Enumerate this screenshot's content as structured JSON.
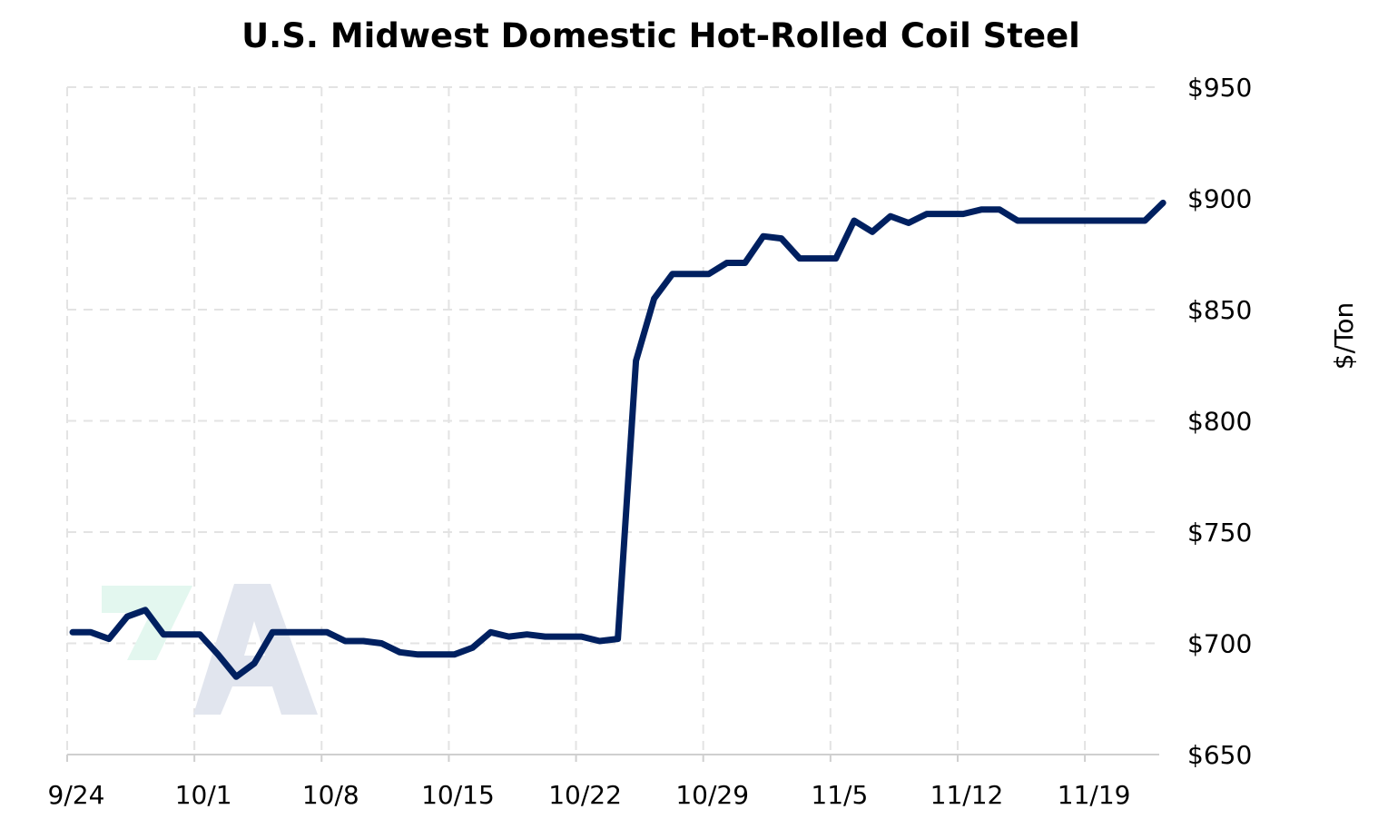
{
  "chart_data": {
    "type": "line",
    "title": "U.S. Midwest Domestic Hot-Rolled Coil Steel",
    "xlabel": "",
    "ylabel": "$/Ton",
    "x_tick_labels": [
      "9/24",
      "10/1",
      "10/8",
      "10/15",
      "10/22",
      "10/29",
      "11/5",
      "11/12",
      "11/19"
    ],
    "y_tick_values": [
      650,
      700,
      750,
      800,
      850,
      900,
      950
    ],
    "y_tick_labels": [
      "$650",
      "$700",
      "$750",
      "$800",
      "$850",
      "$900",
      "$950"
    ],
    "ylim": [
      650,
      950
    ],
    "xlim": [
      "9/24",
      "11/23"
    ],
    "grid": true,
    "y_axis_position": "right",
    "line_color": "#002060",
    "series": [
      {
        "values": [
          {
            "x": "9/24",
            "y": 705
          },
          {
            "x": "9/25",
            "y": 705
          },
          {
            "x": "9/26",
            "y": 702
          },
          {
            "x": "9/27",
            "y": 712
          },
          {
            "x": "9/28",
            "y": 715
          },
          {
            "x": "9/29",
            "y": 704
          },
          {
            "x": "9/30",
            "y": 704
          },
          {
            "x": "10/1",
            "y": 704
          },
          {
            "x": "10/2",
            "y": 695
          },
          {
            "x": "10/3",
            "y": 685
          },
          {
            "x": "10/4",
            "y": 691
          },
          {
            "x": "10/5",
            "y": 705
          },
          {
            "x": "10/6",
            "y": 705
          },
          {
            "x": "10/7",
            "y": 705
          },
          {
            "x": "10/8",
            "y": 705
          },
          {
            "x": "10/9",
            "y": 701
          },
          {
            "x": "10/10",
            "y": 701
          },
          {
            "x": "10/11",
            "y": 700
          },
          {
            "x": "10/12",
            "y": 696
          },
          {
            "x": "10/13",
            "y": 695
          },
          {
            "x": "10/14",
            "y": 695
          },
          {
            "x": "10/15",
            "y": 695
          },
          {
            "x": "10/16",
            "y": 698
          },
          {
            "x": "10/17",
            "y": 705
          },
          {
            "x": "10/18",
            "y": 703
          },
          {
            "x": "10/19",
            "y": 704
          },
          {
            "x": "10/20",
            "y": 703
          },
          {
            "x": "10/21",
            "y": 703
          },
          {
            "x": "10/22",
            "y": 703
          },
          {
            "x": "10/23",
            "y": 701
          },
          {
            "x": "10/24",
            "y": 702
          },
          {
            "x": "10/25",
            "y": 827
          },
          {
            "x": "10/26",
            "y": 855
          },
          {
            "x": "10/27",
            "y": 866
          },
          {
            "x": "10/28",
            "y": 866
          },
          {
            "x": "10/29",
            "y": 866
          },
          {
            "x": "10/30",
            "y": 871
          },
          {
            "x": "10/31",
            "y": 871
          },
          {
            "x": "11/1",
            "y": 883
          },
          {
            "x": "11/2",
            "y": 882
          },
          {
            "x": "11/3",
            "y": 873
          },
          {
            "x": "11/4",
            "y": 873
          },
          {
            "x": "11/5",
            "y": 873
          },
          {
            "x": "11/6",
            "y": 890
          },
          {
            "x": "11/7",
            "y": 885
          },
          {
            "x": "11/8",
            "y": 892
          },
          {
            "x": "11/9",
            "y": 889
          },
          {
            "x": "11/10",
            "y": 893
          },
          {
            "x": "11/11",
            "y": 893
          },
          {
            "x": "11/12",
            "y": 893
          },
          {
            "x": "11/13",
            "y": 895
          },
          {
            "x": "11/14",
            "y": 895
          },
          {
            "x": "11/15",
            "y": 890
          },
          {
            "x": "11/16",
            "y": 890
          },
          {
            "x": "11/17",
            "y": 890
          },
          {
            "x": "11/18",
            "y": 890
          },
          {
            "x": "11/19",
            "y": 890
          },
          {
            "x": "11/20",
            "y": 890
          },
          {
            "x": "11/21",
            "y": 890
          },
          {
            "x": "11/22",
            "y": 890
          },
          {
            "x": "11/23",
            "y": 898
          }
        ]
      }
    ]
  },
  "watermark": {
    "kind": "logo",
    "text": "7A",
    "colors": {
      "left": "#e3f7ef",
      "right": "#e1e5ee"
    }
  }
}
